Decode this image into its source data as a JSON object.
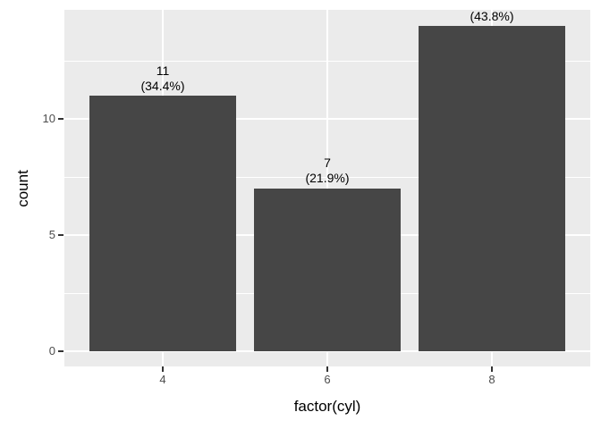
{
  "chart_data": {
    "type": "bar",
    "title": "",
    "xlabel": "factor(cyl)",
    "ylabel": "count",
    "categories": [
      "4",
      "6",
      "8"
    ],
    "values": [
      11,
      7,
      14
    ],
    "percentages": [
      34.4,
      21.9,
      43.8
    ],
    "bar_labels": [
      {
        "line1": "11",
        "line2": "(34.4%)"
      },
      {
        "line1": "7",
        "line2": "(21.9%)"
      },
      {
        "line1": "",
        "line2": "(43.8%)"
      }
    ],
    "yticks": [
      "0",
      "5",
      "10"
    ],
    "ylim": [
      0,
      14.7
    ],
    "grid": "on",
    "legend_position": "none",
    "colors": {
      "bar_fill": "#464646",
      "panel_background": "#EBEBEB",
      "gridline": "#FFFFFF",
      "tick_label": "#4D4D4D",
      "axis_title": "#000000",
      "bar_value_label": "#000000"
    }
  }
}
